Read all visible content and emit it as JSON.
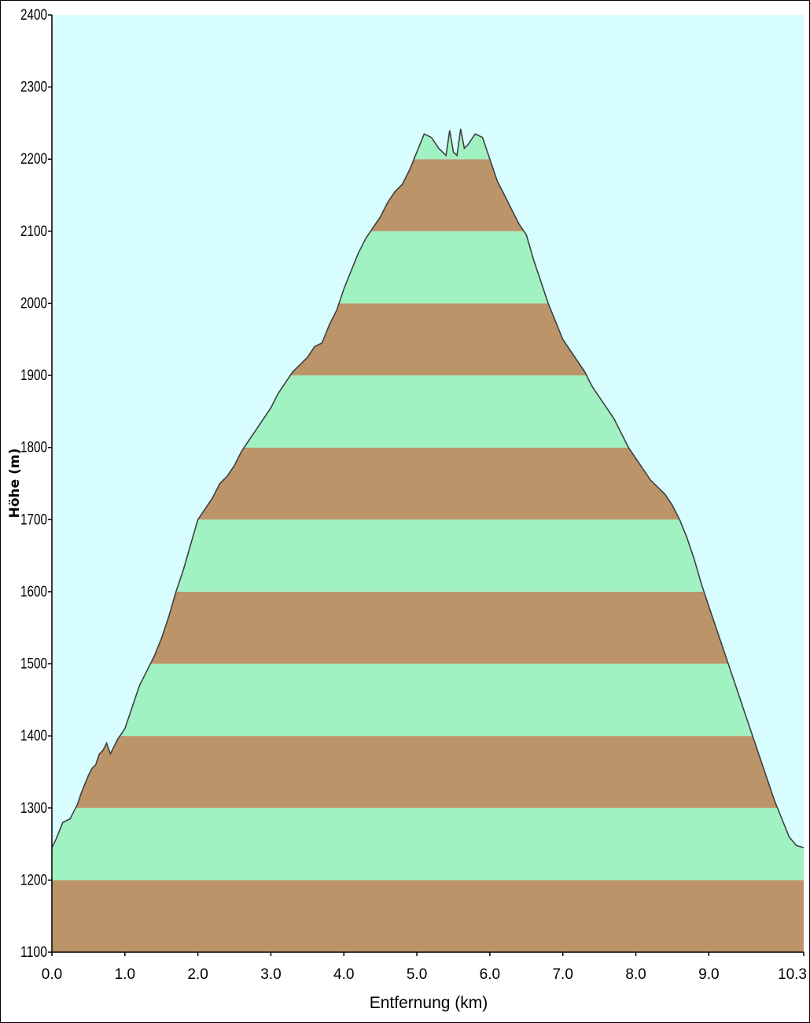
{
  "chart_data": {
    "type": "area",
    "title": "",
    "xlabel": "Entfernung  (km)",
    "ylabel": "Höhe (m)",
    "xlim": [
      0,
      10.3
    ],
    "ylim": [
      1100,
      2400
    ],
    "x_ticks": [
      "0.0",
      "1.0",
      "2.0",
      "3.0",
      "4.0",
      "5.0",
      "6.0",
      "7.0",
      "8.0",
      "9.0",
      "10.3"
    ],
    "y_ticks": [
      "1100",
      "1200",
      "1300",
      "1400",
      "1500",
      "1600",
      "1700",
      "1800",
      "1900",
      "2000",
      "2100",
      "2200",
      "2300",
      "2400"
    ],
    "band_colors": [
      "#bc946a",
      "#a0f2c2"
    ],
    "background_color": "#d8fdfe",
    "line_color": "#404040",
    "grid": false,
    "legend": "none",
    "series": [
      {
        "x": [
          0.0,
          0.05,
          0.15,
          0.25,
          0.3,
          0.35,
          0.4,
          0.5,
          0.55,
          0.6,
          0.65,
          0.7,
          0.75,
          0.8,
          0.9,
          1.0,
          1.1,
          1.2,
          1.3,
          1.4,
          1.5,
          1.6,
          1.7,
          1.8,
          1.9,
          2.0,
          2.1,
          2.2,
          2.3,
          2.4,
          2.5,
          2.6,
          2.7,
          2.8,
          2.9,
          3.0,
          3.1,
          3.2,
          3.3,
          3.4,
          3.5,
          3.6,
          3.7,
          3.8,
          3.9,
          4.0,
          4.1,
          4.2,
          4.3,
          4.4,
          4.5,
          4.6,
          4.7,
          4.8,
          4.9,
          5.0,
          5.1,
          5.2,
          5.3,
          5.4,
          5.45,
          5.5,
          5.55,
          5.6,
          5.65,
          5.7,
          5.8,
          5.9,
          6.0,
          6.1,
          6.2,
          6.3,
          6.4,
          6.5,
          6.6,
          6.7,
          6.8,
          6.9,
          7.0,
          7.1,
          7.2,
          7.3,
          7.4,
          7.5,
          7.6,
          7.7,
          7.8,
          7.9,
          8.0,
          8.1,
          8.2,
          8.3,
          8.4,
          8.5,
          8.6,
          8.7,
          8.8,
          8.9,
          9.0,
          9.1,
          9.2,
          9.3,
          9.4,
          9.5,
          9.6,
          9.7,
          9.8,
          9.9,
          10.0,
          10.1,
          10.2,
          10.3
        ],
        "y": [
          1245,
          1255,
          1280,
          1285,
          1295,
          1305,
          1320,
          1345,
          1355,
          1360,
          1375,
          1380,
          1390,
          1375,
          1395,
          1410,
          1440,
          1470,
          1490,
          1510,
          1535,
          1565,
          1600,
          1630,
          1665,
          1700,
          1715,
          1730,
          1750,
          1760,
          1775,
          1795,
          1810,
          1825,
          1840,
          1855,
          1875,
          1890,
          1905,
          1915,
          1925,
          1940,
          1945,
          1970,
          1990,
          2020,
          2045,
          2070,
          2090,
          2105,
          2120,
          2140,
          2155,
          2165,
          2185,
          2210,
          2235,
          2230,
          2215,
          2205,
          2240,
          2210,
          2205,
          2242,
          2215,
          2220,
          2235,
          2230,
          2200,
          2170,
          2150,
          2130,
          2110,
          2095,
          2060,
          2030,
          2000,
          1975,
          1950,
          1935,
          1920,
          1905,
          1885,
          1870,
          1855,
          1840,
          1820,
          1800,
          1785,
          1770,
          1755,
          1745,
          1735,
          1720,
          1700,
          1675,
          1645,
          1610,
          1580,
          1550,
          1520,
          1490,
          1460,
          1430,
          1400,
          1370,
          1340,
          1310,
          1285,
          1260,
          1248,
          1245
        ]
      }
    ]
  }
}
